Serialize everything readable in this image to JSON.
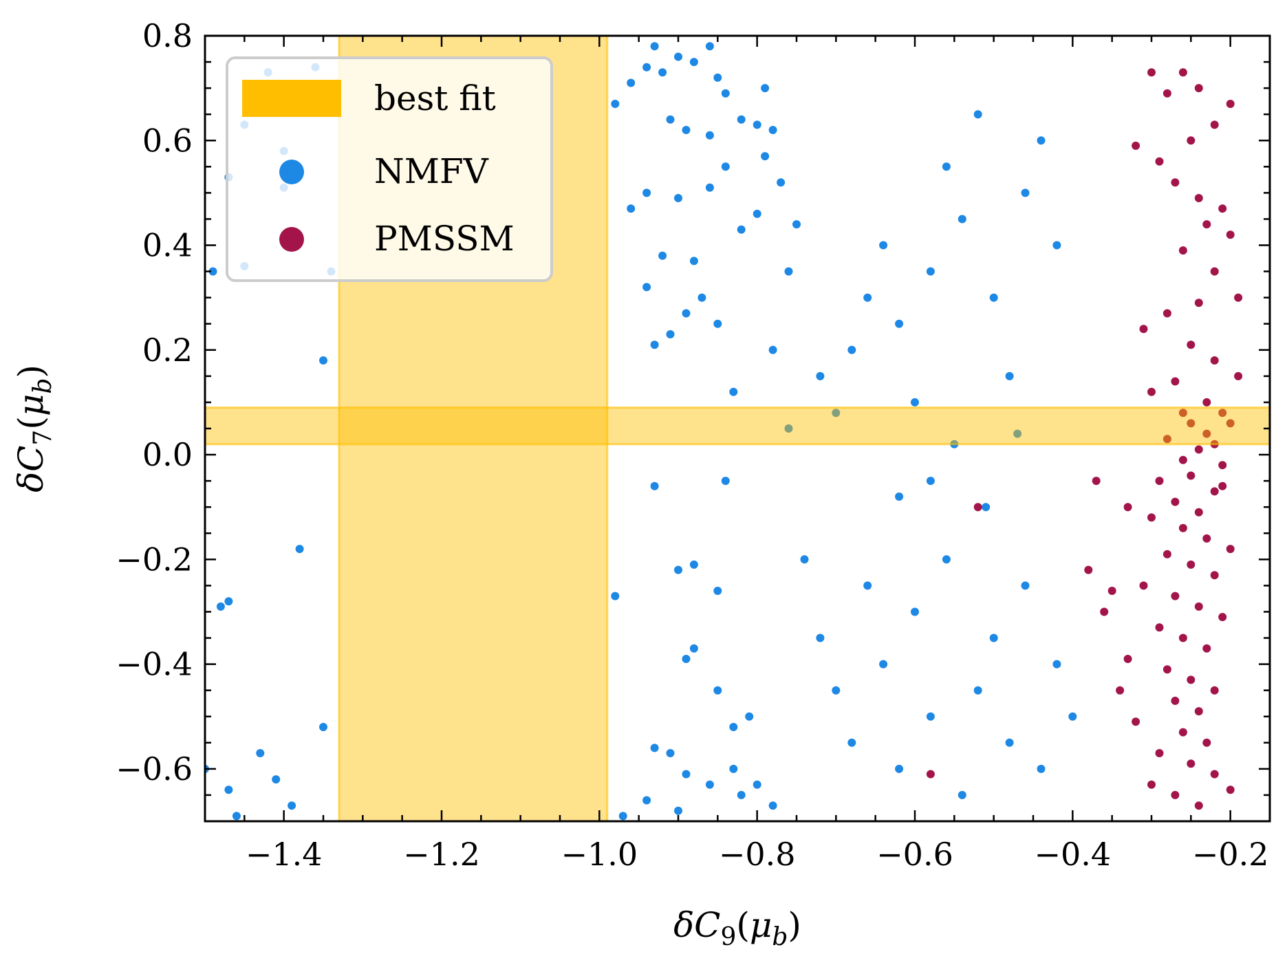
{
  "chart_data": {
    "type": "scatter",
    "xlabel": "δC9(μb)",
    "ylabel": "δC7(μb)",
    "xlabel_parts": {
      "base": "δC",
      "sub": "9",
      "open": "(",
      "mu": "μ",
      "mu_sub": "b",
      "close": ")"
    },
    "ylabel_parts": {
      "base": "δC",
      "sub": "7",
      "open": "(",
      "mu": "μ",
      "mu_sub": "b",
      "close": ")"
    },
    "xlim": [
      -1.5,
      -0.15
    ],
    "ylim": [
      -0.7,
      0.8
    ],
    "x_ticks": [
      -1.4,
      -1.2,
      -1.0,
      -0.8,
      -0.6,
      -0.4,
      -0.2
    ],
    "x_tick_labels": [
      "−1.4",
      "−1.2",
      "−1.0",
      "−0.8",
      "−0.6",
      "−0.4",
      "−0.2"
    ],
    "y_ticks": [
      -0.6,
      -0.4,
      -0.2,
      0.0,
      0.2,
      0.4,
      0.6,
      0.8
    ],
    "y_tick_labels": [
      "−0.6",
      "−0.4",
      "−0.2",
      "0.0",
      "0.2",
      "0.4",
      "0.6",
      "0.8"
    ],
    "x_minor_step": 0.05,
    "y_minor_step": 0.05,
    "grid": false,
    "legend_position": "top-left",
    "legend": [
      {
        "label": "best fit",
        "kind": "band",
        "color": "#ffbf00"
      },
      {
        "label": "NMFV",
        "kind": "marker",
        "color": "#1e88e5"
      },
      {
        "label": "PMSSM",
        "kind": "marker",
        "color": "#a3154a"
      }
    ],
    "best_fit": {
      "color": "#ffbf00",
      "c9_range": [
        -1.33,
        -0.99
      ],
      "c7_range": [
        0.02,
        0.09
      ]
    },
    "series": [
      {
        "name": "NMFV",
        "color": "#1e88e5",
        "points": [
          [
            -1.49,
            0.35
          ],
          [
            -1.47,
            0.53
          ],
          [
            -1.45,
            0.36
          ],
          [
            -1.45,
            0.63
          ],
          [
            -1.42,
            0.73
          ],
          [
            -1.4,
            0.51
          ],
          [
            -1.4,
            0.58
          ],
          [
            -1.35,
            0.18
          ],
          [
            -1.38,
            -0.18
          ],
          [
            -1.48,
            -0.29
          ],
          [
            -1.47,
            -0.28
          ],
          [
            -1.43,
            -0.57
          ],
          [
            -1.41,
            -0.62
          ],
          [
            -1.35,
            -0.52
          ],
          [
            -1.5,
            -0.6
          ],
          [
            -1.47,
            -0.64
          ],
          [
            -1.46,
            -0.69
          ],
          [
            -1.39,
            -0.67
          ],
          [
            -1.36,
            0.74
          ],
          [
            -1.34,
            0.35
          ],
          [
            -0.98,
            0.67
          ],
          [
            -0.96,
            0.71
          ],
          [
            -0.94,
            0.74
          ],
          [
            -0.93,
            0.78
          ],
          [
            -0.92,
            0.73
          ],
          [
            -0.9,
            0.76
          ],
          [
            -0.88,
            0.75
          ],
          [
            -0.86,
            0.78
          ],
          [
            -0.85,
            0.72
          ],
          [
            -0.84,
            0.69
          ],
          [
            -0.82,
            0.64
          ],
          [
            -0.8,
            0.63
          ],
          [
            -0.79,
            0.57
          ],
          [
            -0.86,
            0.61
          ],
          [
            -0.89,
            0.62
          ],
          [
            -0.91,
            0.64
          ],
          [
            -0.94,
            0.5
          ],
          [
            -0.96,
            0.47
          ],
          [
            -0.9,
            0.49
          ],
          [
            -0.86,
            0.51
          ],
          [
            -0.84,
            0.55
          ],
          [
            -0.82,
            0.43
          ],
          [
            -0.8,
            0.46
          ],
          [
            -0.88,
            0.37
          ],
          [
            -0.92,
            0.38
          ],
          [
            -0.94,
            0.32
          ],
          [
            -0.89,
            0.27
          ],
          [
            -0.87,
            0.3
          ],
          [
            -0.85,
            0.25
          ],
          [
            -0.93,
            0.21
          ],
          [
            -0.91,
            0.23
          ],
          [
            -0.83,
            0.12
          ],
          [
            -0.84,
            -0.05
          ],
          [
            -0.93,
            -0.06
          ],
          [
            -0.98,
            -0.27
          ],
          [
            -0.9,
            -0.22
          ],
          [
            -0.88,
            -0.21
          ],
          [
            -0.85,
            -0.26
          ],
          [
            -0.88,
            -0.37
          ],
          [
            -0.89,
            -0.39
          ],
          [
            -0.85,
            -0.45
          ],
          [
            -0.81,
            -0.5
          ],
          [
            -0.83,
            -0.52
          ],
          [
            -0.93,
            -0.56
          ],
          [
            -0.91,
            -0.57
          ],
          [
            -0.89,
            -0.61
          ],
          [
            -0.86,
            -0.63
          ],
          [
            -0.83,
            -0.6
          ],
          [
            -0.82,
            -0.65
          ],
          [
            -0.8,
            -0.63
          ],
          [
            -0.78,
            -0.67
          ],
          [
            -0.9,
            -0.68
          ],
          [
            -0.94,
            -0.66
          ],
          [
            -0.97,
            -0.69
          ],
          [
            -0.78,
            0.2
          ],
          [
            -0.76,
            0.35
          ],
          [
            -0.75,
            0.44
          ],
          [
            -0.77,
            0.52
          ],
          [
            -0.78,
            0.62
          ],
          [
            -0.79,
            0.7
          ],
          [
            -0.72,
            0.15
          ],
          [
            -0.7,
            0.08
          ],
          [
            -0.68,
            0.2
          ],
          [
            -0.66,
            0.3
          ],
          [
            -0.64,
            0.4
          ],
          [
            -0.62,
            0.25
          ],
          [
            -0.6,
            0.1
          ],
          [
            -0.58,
            0.35
          ],
          [
            -0.56,
            0.55
          ],
          [
            -0.54,
            0.45
          ],
          [
            -0.52,
            0.65
          ],
          [
            -0.5,
            0.3
          ],
          [
            -0.48,
            0.15
          ],
          [
            -0.46,
            0.5
          ],
          [
            -0.44,
            0.6
          ],
          [
            -0.42,
            0.4
          ],
          [
            -0.74,
            -0.2
          ],
          [
            -0.72,
            -0.35
          ],
          [
            -0.7,
            -0.45
          ],
          [
            -0.68,
            -0.55
          ],
          [
            -0.66,
            -0.25
          ],
          [
            -0.64,
            -0.4
          ],
          [
            -0.62,
            -0.6
          ],
          [
            -0.6,
            -0.3
          ],
          [
            -0.58,
            -0.5
          ],
          [
            -0.56,
            -0.2
          ],
          [
            -0.54,
            -0.65
          ],
          [
            -0.52,
            -0.45
          ],
          [
            -0.5,
            -0.35
          ],
          [
            -0.48,
            -0.55
          ],
          [
            -0.46,
            -0.25
          ],
          [
            -0.44,
            -0.6
          ],
          [
            -0.42,
            -0.4
          ],
          [
            -0.4,
            -0.5
          ],
          [
            -0.76,
            0.05
          ],
          [
            -0.62,
            -0.08
          ],
          [
            -0.58,
            -0.05
          ],
          [
            -0.55,
            0.02
          ],
          [
            -0.51,
            -0.1
          ],
          [
            -0.47,
            0.04
          ]
        ]
      },
      {
        "name": "PMSSM",
        "color": "#a3154a",
        "points": [
          [
            -0.3,
            0.73
          ],
          [
            -0.26,
            0.73
          ],
          [
            -0.24,
            0.7
          ],
          [
            -0.2,
            0.67
          ],
          [
            -0.22,
            0.63
          ],
          [
            -0.28,
            0.69
          ],
          [
            -0.25,
            0.6
          ],
          [
            -0.29,
            0.56
          ],
          [
            -0.32,
            0.59
          ],
          [
            -0.27,
            0.52
          ],
          [
            -0.24,
            0.49
          ],
          [
            -0.21,
            0.47
          ],
          [
            -0.23,
            0.44
          ],
          [
            -0.2,
            0.42
          ],
          [
            -0.26,
            0.39
          ],
          [
            -0.22,
            0.35
          ],
          [
            -0.19,
            0.3
          ],
          [
            -0.24,
            0.29
          ],
          [
            -0.28,
            0.27
          ],
          [
            -0.31,
            0.24
          ],
          [
            -0.25,
            0.21
          ],
          [
            -0.22,
            0.18
          ],
          [
            -0.19,
            0.15
          ],
          [
            -0.27,
            0.14
          ],
          [
            -0.3,
            0.12
          ],
          [
            -0.23,
            0.1
          ],
          [
            -0.26,
            0.08
          ],
          [
            -0.2,
            0.06
          ],
          [
            -0.28,
            0.03
          ],
          [
            -0.24,
            0.01
          ],
          [
            -0.21,
            -0.02
          ],
          [
            -0.25,
            -0.04
          ],
          [
            -0.29,
            -0.05
          ],
          [
            -0.22,
            -0.07
          ],
          [
            -0.27,
            -0.09
          ],
          [
            -0.24,
            -0.11
          ],
          [
            -0.3,
            -0.12
          ],
          [
            -0.26,
            -0.14
          ],
          [
            -0.23,
            -0.16
          ],
          [
            -0.2,
            -0.18
          ],
          [
            -0.28,
            -0.19
          ],
          [
            -0.25,
            -0.21
          ],
          [
            -0.22,
            -0.23
          ],
          [
            -0.31,
            -0.25
          ],
          [
            -0.27,
            -0.27
          ],
          [
            -0.24,
            -0.29
          ],
          [
            -0.21,
            -0.31
          ],
          [
            -0.29,
            -0.33
          ],
          [
            -0.26,
            -0.35
          ],
          [
            -0.23,
            -0.37
          ],
          [
            -0.33,
            -0.39
          ],
          [
            -0.28,
            -0.41
          ],
          [
            -0.25,
            -0.43
          ],
          [
            -0.22,
            -0.45
          ],
          [
            -0.27,
            -0.47
          ],
          [
            -0.24,
            -0.49
          ],
          [
            -0.32,
            -0.51
          ],
          [
            -0.26,
            -0.53
          ],
          [
            -0.23,
            -0.55
          ],
          [
            -0.29,
            -0.57
          ],
          [
            -0.25,
            -0.59
          ],
          [
            -0.22,
            -0.61
          ],
          [
            -0.3,
            -0.63
          ],
          [
            -0.27,
            -0.65
          ],
          [
            -0.24,
            -0.67
          ],
          [
            -0.2,
            -0.64
          ],
          [
            -0.34,
            -0.45
          ],
          [
            -0.36,
            -0.3
          ],
          [
            -0.38,
            -0.22
          ],
          [
            -0.37,
            -0.05
          ],
          [
            -0.33,
            -0.1
          ],
          [
            -0.35,
            -0.26
          ],
          [
            -0.52,
            -0.1
          ],
          [
            -0.58,
            -0.61
          ],
          [
            -0.21,
            0.08
          ],
          [
            -0.23,
            0.04
          ],
          [
            -0.25,
            0.06
          ],
          [
            -0.22,
            0.02
          ],
          [
            -0.26,
            -0.01
          ],
          [
            -0.21,
            -0.06
          ]
        ]
      }
    ]
  }
}
